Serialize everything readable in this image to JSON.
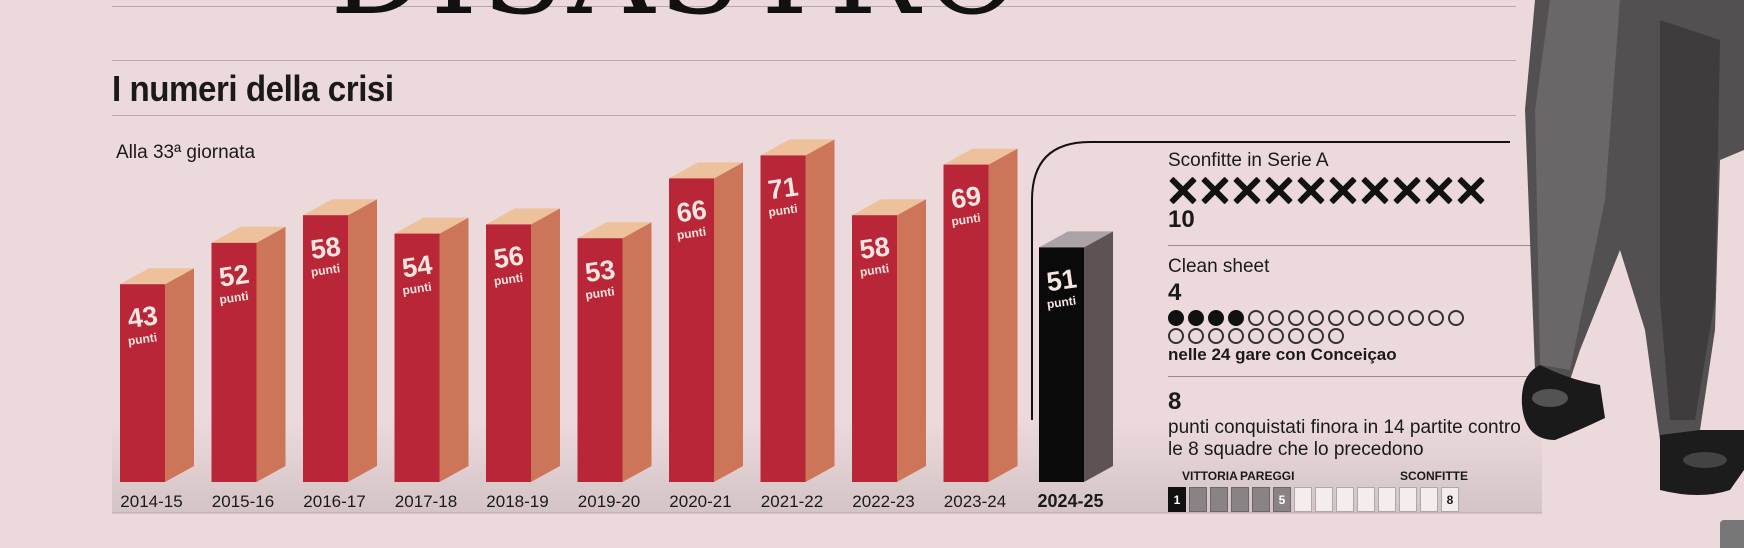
{
  "headline": "DISASTRO",
  "section_title": "I numeri della crisi",
  "colors": {
    "bar_front": "#b82638",
    "bar_side": "#cd7559",
    "bar_top": "#edc19b",
    "current_front": "#0a0a0a",
    "current_side": "#5e5354",
    "current_top": "#aaa2a4",
    "background": "#ecd9dc"
  },
  "chart_data": {
    "type": "bar",
    "title": "I numeri della crisi",
    "subtitle": "Alla 33ª giornata",
    "categories": [
      "2014-15",
      "2015-16",
      "2016-17",
      "2017-18",
      "2018-19",
      "2019-20",
      "2020-21",
      "2021-22",
      "2022-23",
      "2023-24",
      "2024-25"
    ],
    "values": [
      43,
      52,
      58,
      54,
      56,
      53,
      66,
      71,
      58,
      69,
      51
    ],
    "value_unit": "punti",
    "highlight_category": "2024-25",
    "ylim": [
      0,
      75
    ]
  },
  "stats": {
    "losses": {
      "label": "Sconfitte in Serie A",
      "value": "10",
      "count": 10
    },
    "clean_sheet": {
      "label": "Clean sheet",
      "value": "4",
      "filled": 4,
      "total": 24,
      "caption": "nelle 24 gare con Conceiçao"
    },
    "points_vs_top": {
      "value": "8",
      "caption_line1": "punti conquistati finora in 14 partite contro",
      "caption_line2": "le 8 squadre che lo precedono",
      "labels": {
        "wins": "VITTORIA",
        "draws": "PAREGGI",
        "losses": "SCONFITTE"
      },
      "results": [
        "W",
        "D",
        "D",
        "D",
        "D",
        "D",
        "L",
        "L",
        "L",
        "L",
        "L",
        "L",
        "L",
        "L"
      ],
      "markers": {
        "wins": "1",
        "draws": "5",
        "losses": "8"
      }
    }
  }
}
